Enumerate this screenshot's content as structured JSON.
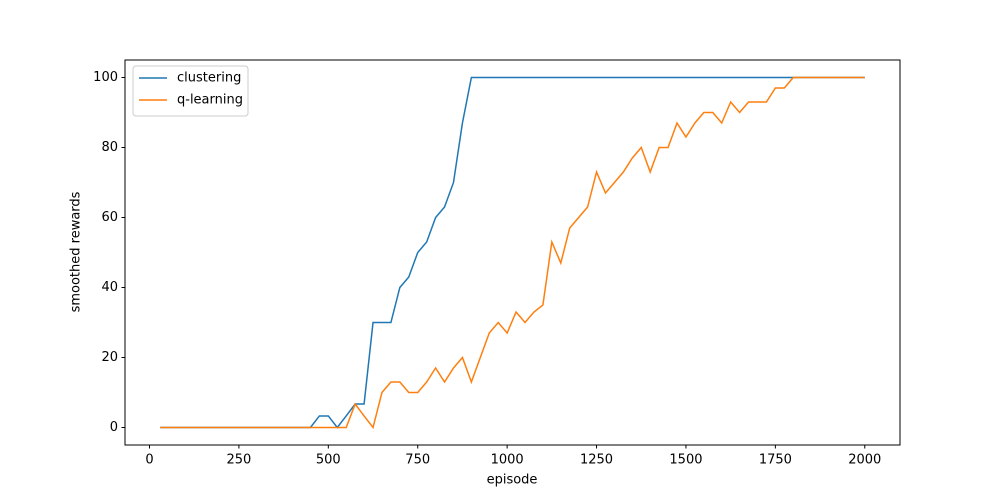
{
  "chart_data": {
    "type": "line",
    "xlabel": "episode",
    "ylabel": "smoothed rewards",
    "x": [
      30,
      450,
      475,
      500,
      525,
      550,
      575,
      600,
      625,
      650,
      675,
      700,
      725,
      750,
      775,
      800,
      825,
      850,
      875,
      900,
      925,
      950,
      975,
      1000,
      1025,
      1050,
      1075,
      1100,
      1125,
      1150,
      1175,
      1200,
      1225,
      1250,
      1275,
      1300,
      1325,
      1350,
      1375,
      1400,
      1425,
      1450,
      1475,
      1500,
      1525,
      1550,
      1575,
      1600,
      1625,
      1650,
      1675,
      1700,
      1725,
      1750,
      1775,
      1800,
      1825,
      1850,
      1875,
      1900,
      1925,
      1950,
      1975,
      2000
    ],
    "series": [
      {
        "name": "clustering",
        "color": "#1f77b4",
        "values": [
          0,
          0,
          3.3,
          3.3,
          0,
          3.3,
          6.7,
          6.7,
          30,
          30,
          30,
          40,
          43,
          50,
          53,
          60,
          63,
          70,
          87,
          100,
          100,
          100,
          100,
          100,
          100,
          100,
          100,
          100,
          100,
          100,
          100,
          100,
          100,
          100,
          100,
          100,
          100,
          100,
          100,
          100,
          100,
          100,
          100,
          100,
          100,
          100,
          100,
          100,
          100,
          100,
          100,
          100,
          100,
          100,
          100,
          100,
          100,
          100,
          100,
          100,
          100,
          100,
          100,
          100
        ]
      },
      {
        "name": "q-learning",
        "color": "#ff7f0e",
        "values": [
          0,
          0,
          0,
          0,
          0,
          0,
          6.7,
          3.3,
          0,
          10,
          13,
          13,
          10,
          10,
          13,
          17,
          13,
          17,
          20,
          13,
          20,
          27,
          30,
          27,
          33,
          30,
          33,
          35,
          53,
          47,
          57,
          60,
          63,
          73,
          67,
          70,
          73,
          77,
          80,
          73,
          80,
          80,
          87,
          83,
          87,
          90,
          90,
          87,
          93,
          90,
          93,
          93,
          93,
          97,
          97,
          100,
          100,
          100,
          100,
          100,
          100,
          100,
          100,
          100
        ]
      }
    ],
    "xlim": [
      -68.5,
      2098.5
    ],
    "ylim": [
      -5,
      105
    ],
    "xticks": [
      0,
      250,
      500,
      750,
      1000,
      1250,
      1500,
      1750,
      2000
    ],
    "yticks": [
      0,
      20,
      40,
      60,
      80,
      100
    ],
    "legend": "upper-left"
  }
}
